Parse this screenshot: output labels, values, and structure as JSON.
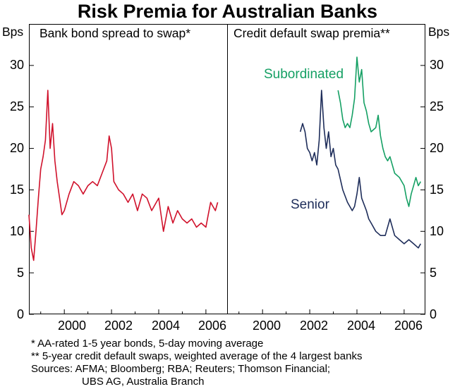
{
  "title": "Risk Premia for Australian Banks",
  "chart_data": [
    {
      "type": "line",
      "title": "Bank bond spread to swap*",
      "ylabel": "Bps",
      "ylim": [
        0,
        35
      ],
      "yticks": [
        "0",
        "5",
        "10",
        "15",
        "20",
        "25",
        "30"
      ],
      "xlim": [
        1998.5,
        2006.9
      ],
      "xticks": [
        "2000",
        "2002",
        "2004",
        "2006"
      ],
      "grid": false,
      "series": [
        {
          "name": "",
          "color": "#d0112b",
          "x": [
            1998.5,
            1998.6,
            1998.7,
            1998.8,
            1998.9,
            1999.0,
            1999.1,
            1999.2,
            1999.3,
            1999.4,
            1999.5,
            1999.6,
            1999.7,
            1999.8,
            1999.9,
            2000.0,
            2000.2,
            2000.4,
            2000.6,
            2000.8,
            2001.0,
            2001.2,
            2001.4,
            2001.6,
            2001.8,
            2001.9,
            2002.0,
            2002.1,
            2002.3,
            2002.5,
            2002.7,
            2002.9,
            2003.1,
            2003.3,
            2003.5,
            2003.7,
            2003.9,
            2004.0,
            2004.1,
            2004.2,
            2004.4,
            2004.6,
            2004.8,
            2005.0,
            2005.2,
            2005.4,
            2005.6,
            2005.8,
            2006.0,
            2006.1,
            2006.2,
            2006.3,
            2006.4,
            2006.5
          ],
          "y": [
            12.0,
            8.0,
            6.5,
            10.0,
            14.0,
            17.5,
            19.0,
            21.0,
            27.0,
            20.0,
            23.0,
            18.5,
            16.0,
            14.0,
            12.0,
            12.5,
            14.5,
            16.0,
            15.5,
            14.5,
            15.5,
            16.0,
            15.5,
            17.0,
            18.5,
            21.5,
            20.0,
            16.0,
            15.0,
            14.5,
            13.5,
            14.5,
            12.5,
            14.5,
            14.0,
            12.5,
            13.5,
            14.0,
            12.0,
            10.0,
            13.0,
            11.0,
            12.5,
            11.5,
            11.0,
            11.5,
            10.5,
            11.0,
            10.5,
            12.0,
            13.5,
            13.0,
            12.5,
            13.5
          ]
        }
      ]
    },
    {
      "type": "line",
      "title": "Credit default swap premia**",
      "ylabel": "Bps",
      "ylim": [
        0,
        35
      ],
      "yticks": [
        "0",
        "5",
        "10",
        "15",
        "20",
        "25",
        "30"
      ],
      "xlim": [
        1998.5,
        2006.9
      ],
      "xticks": [
        "2000",
        "2002",
        "2004",
        "2006"
      ],
      "grid": false,
      "series": [
        {
          "name": "Subordinated",
          "color": "#15a064",
          "x": [
            2003.2,
            2003.3,
            2003.4,
            2003.5,
            2003.6,
            2003.7,
            2003.8,
            2003.9,
            2004.0,
            2004.1,
            2004.2,
            2004.3,
            2004.4,
            2004.5,
            2004.6,
            2004.8,
            2004.9,
            2005.0,
            2005.1,
            2005.2,
            2005.3,
            2005.4,
            2005.6,
            2005.8,
            2006.0,
            2006.1,
            2006.2,
            2006.3,
            2006.4,
            2006.5,
            2006.6,
            2006.7
          ],
          "y": [
            27.0,
            25.5,
            23.5,
            22.5,
            23.0,
            22.5,
            24.0,
            26.0,
            31.0,
            28.0,
            29.5,
            25.5,
            24.5,
            23.0,
            22.0,
            22.5,
            24.0,
            21.5,
            20.0,
            19.0,
            18.5,
            19.0,
            17.0,
            16.5,
            15.5,
            14.0,
            13.0,
            14.5,
            15.5,
            16.5,
            15.5,
            16.0
          ]
        },
        {
          "name": "Senior",
          "color": "#1e2d5a",
          "x": [
            2001.6,
            2001.7,
            2001.8,
            2001.9,
            2002.0,
            2002.1,
            2002.2,
            2002.3,
            2002.4,
            2002.5,
            2002.6,
            2002.7,
            2002.8,
            2002.9,
            2003.0,
            2003.1,
            2003.2,
            2003.4,
            2003.6,
            2003.8,
            2003.9,
            2004.0,
            2004.1,
            2004.2,
            2004.4,
            2004.5,
            2004.6,
            2004.8,
            2005.0,
            2005.2,
            2005.4,
            2005.6,
            2005.8,
            2006.0,
            2006.2,
            2006.4,
            2006.6,
            2006.7
          ],
          "y": [
            22.0,
            23.0,
            22.0,
            20.0,
            19.5,
            18.5,
            19.5,
            18.0,
            21.0,
            27.0,
            22.5,
            20.0,
            22.0,
            19.0,
            20.0,
            18.0,
            17.5,
            15.0,
            13.5,
            12.5,
            13.0,
            14.5,
            16.5,
            14.0,
            12.5,
            11.5,
            11.0,
            10.0,
            9.5,
            9.5,
            11.5,
            9.5,
            9.0,
            8.5,
            9.0,
            8.5,
            8.0,
            8.5
          ]
        }
      ]
    }
  ],
  "notes": [
    "*   AA-rated 1-5 year bonds, 5-day moving average",
    "** 5-year credit default swaps, weighted average of the 4 largest banks",
    "Sources: AFMA; Bloomberg; RBA; Reuters; Thomson Financial;",
    "UBS AG, Australia Branch"
  ]
}
